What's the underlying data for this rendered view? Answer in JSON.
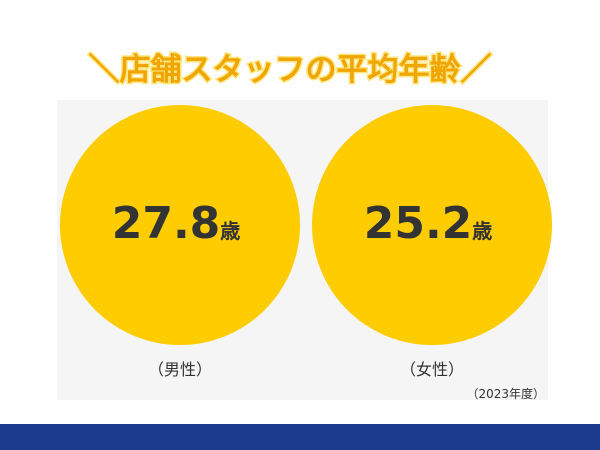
{
  "header": {
    "title": "＼店舗スタッフの平均年齢／"
  },
  "items": [
    {
      "value": 27.8,
      "unit": "歳",
      "label": "（男性）"
    },
    {
      "value": 25.2,
      "unit": "歳",
      "label": "（女性）"
    }
  ],
  "note": "（2023年度）"
}
